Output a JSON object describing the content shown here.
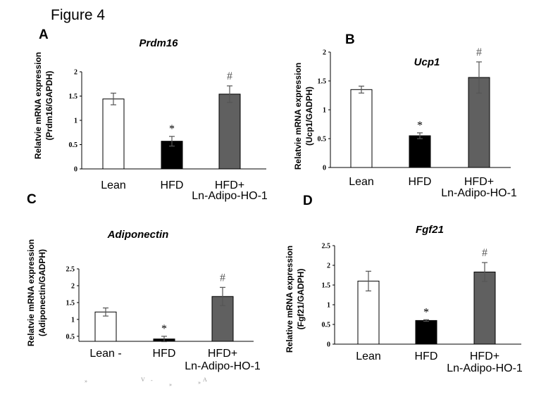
{
  "figure_title": "Figure 4",
  "artifacts": [
    "»",
    "V",
    "-",
    "»",
    "»",
    "A"
  ],
  "chart_data": [
    {
      "type": "bar",
      "panel": "A",
      "title": "Prdm16",
      "ylabel": [
        "Relatvie mRNA expression",
        "(Prdm16/GAPDH)"
      ],
      "categories": [
        "Lean",
        "HFD",
        [
          "HFD+",
          "Ln-Adipo-HO-1"
        ]
      ],
      "values": [
        1.44,
        0.57,
        1.54
      ],
      "errors": [
        0.12,
        0.1,
        0.17
      ],
      "colors": [
        "#ffffff",
        "#000000",
        "#606060"
      ],
      "significance": [
        "",
        "*",
        "#"
      ],
      "ylim": [
        0,
        2
      ],
      "yticks": [
        0,
        0.5,
        1,
        1.5,
        2
      ],
      "ytick_labels": [
        "0",
        "0.5",
        "1",
        "1.5",
        "2"
      ]
    },
    {
      "type": "bar",
      "panel": "B",
      "title": "Ucp1",
      "ylabel": [
        "Relatvie mRNA expression",
        "(Ucp1/GADPH)"
      ],
      "categories": [
        "Lean",
        "HFD",
        [
          "HFD+",
          "Ln-Adipo-HO-1"
        ]
      ],
      "values": [
        1.35,
        0.55,
        1.56
      ],
      "errors": [
        0.06,
        0.05,
        0.27
      ],
      "colors": [
        "#ffffff",
        "#000000",
        "#606060"
      ],
      "significance": [
        "",
        "*",
        "#"
      ],
      "ylim": [
        0,
        2
      ],
      "yticks": [
        0,
        0.5,
        1,
        1.5,
        2
      ],
      "ytick_labels": [
        "0",
        "0.5",
        "1",
        "1.5",
        "2"
      ]
    },
    {
      "type": "bar",
      "panel": "C",
      "title": "Adiponectin",
      "ylabel": [
        "Relatvie mRNA expression",
        "(Adiponectin/GADPH)"
      ],
      "categories": [
        "Lean -",
        "HFD",
        [
          "HFD+",
          "Ln-Adipo-HO-1"
        ]
      ],
      "values": [
        1.22,
        0.42,
        1.68
      ],
      "errors": [
        0.12,
        0.08,
        0.27
      ],
      "colors": [
        "#ffffff",
        "#000000",
        "#606060"
      ],
      "significance": [
        "",
        "*",
        "#"
      ],
      "ylim": [
        0.35,
        2.5
      ],
      "yticks": [
        0.5,
        1,
        1.5,
        2,
        2.5
      ],
      "ytick_labels": [
        "0.5",
        "1",
        "1.5",
        "2",
        "2.5"
      ]
    },
    {
      "type": "bar",
      "panel": "D",
      "title": "Fgf21",
      "ylabel": [
        "Relative mRNA expression",
        "(Fgf21/GADPH)"
      ],
      "categories": [
        "Lean",
        "HFD",
        [
          "HFD+",
          "Ln-Adipo-HO-1"
        ]
      ],
      "values": [
        1.6,
        0.6,
        1.83
      ],
      "errors": [
        0.25,
        0.02,
        0.24
      ],
      "colors": [
        "#ffffff",
        "#000000",
        "#606060"
      ],
      "significance": [
        "",
        "*",
        "#"
      ],
      "ylim": [
        0,
        2.5
      ],
      "yticks": [
        0,
        0.5,
        1,
        1.5,
        2,
        2.5
      ],
      "ytick_labels": [
        "0",
        "0.5",
        "1",
        "1.5",
        "2",
        "2.5"
      ]
    }
  ]
}
